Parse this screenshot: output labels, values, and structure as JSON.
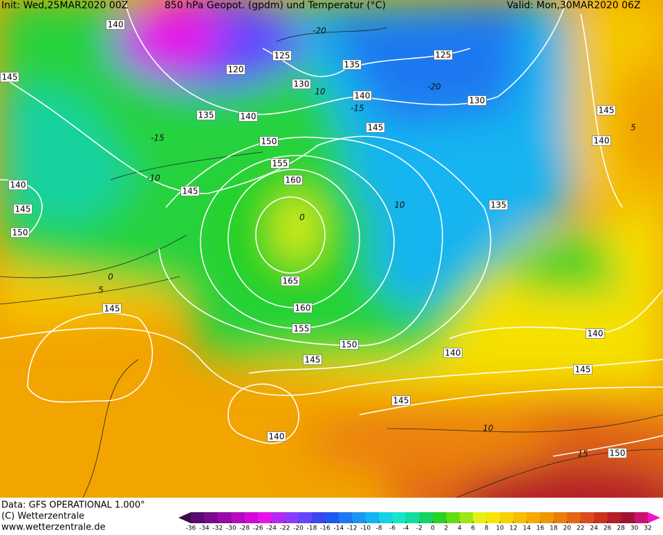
{
  "header": {
    "init": "Init: Wed,25MAR2020 00Z",
    "title": "850 hPa Geopot. (gpdm) und Temperatur (°C)",
    "valid": "Valid: Mon,30MAR2020 06Z"
  },
  "geopotential_labels": [
    "140",
    "125",
    "120",
    "130",
    "135",
    "125",
    "145",
    "135",
    "140",
    "140",
    "130",
    "150",
    "145",
    "145",
    "155",
    "160",
    "140",
    "140",
    "145",
    "145",
    "135",
    "150",
    "165",
    "160",
    "145",
    "155",
    "150",
    "140",
    "140",
    "145",
    "145",
    "145",
    "140",
    "150"
  ],
  "temperature_labels": [
    "-20",
    "-20",
    "-15",
    "-15",
    "-10",
    "10",
    "0",
    "0",
    "5",
    "5",
    "10",
    "15",
    "10"
  ],
  "footer": {
    "data": "Data: GFS OPERATIONAL 1.000°",
    "copyright": "(C) Wetterzentrale",
    "url": "www.wetterzentrale.de"
  },
  "colorbar": {
    "ticks": [
      -36,
      -34,
      -32,
      -30,
      -28,
      -26,
      -24,
      -22,
      -20,
      -18,
      -16,
      -14,
      -12,
      -10,
      -8,
      -6,
      -4,
      -2,
      0,
      2,
      4,
      6,
      8,
      10,
      12,
      14,
      16,
      18,
      20,
      22,
      24,
      26,
      28,
      30,
      32
    ],
    "colors": [
      "#3c0a46",
      "#5a0a6e",
      "#7a0a8c",
      "#960aa8",
      "#b40ac0",
      "#d20ad8",
      "#e614e6",
      "#b428f0",
      "#8c3cff",
      "#6446ff",
      "#3c46f0",
      "#1e5af0",
      "#1e78f0",
      "#1e96f0",
      "#14b4f0",
      "#14d2e6",
      "#14e6c8",
      "#14dca0",
      "#14d264",
      "#28d228",
      "#64dc14",
      "#a0e614",
      "#e6f014",
      "#f5e600",
      "#f5d200",
      "#f5be00",
      "#f5aa00",
      "#f09600",
      "#eb7d0a",
      "#e66414",
      "#dc4b1e",
      "#c8321e",
      "#b41e28",
      "#a01432",
      "#c8146e",
      "#f014c8"
    ]
  }
}
